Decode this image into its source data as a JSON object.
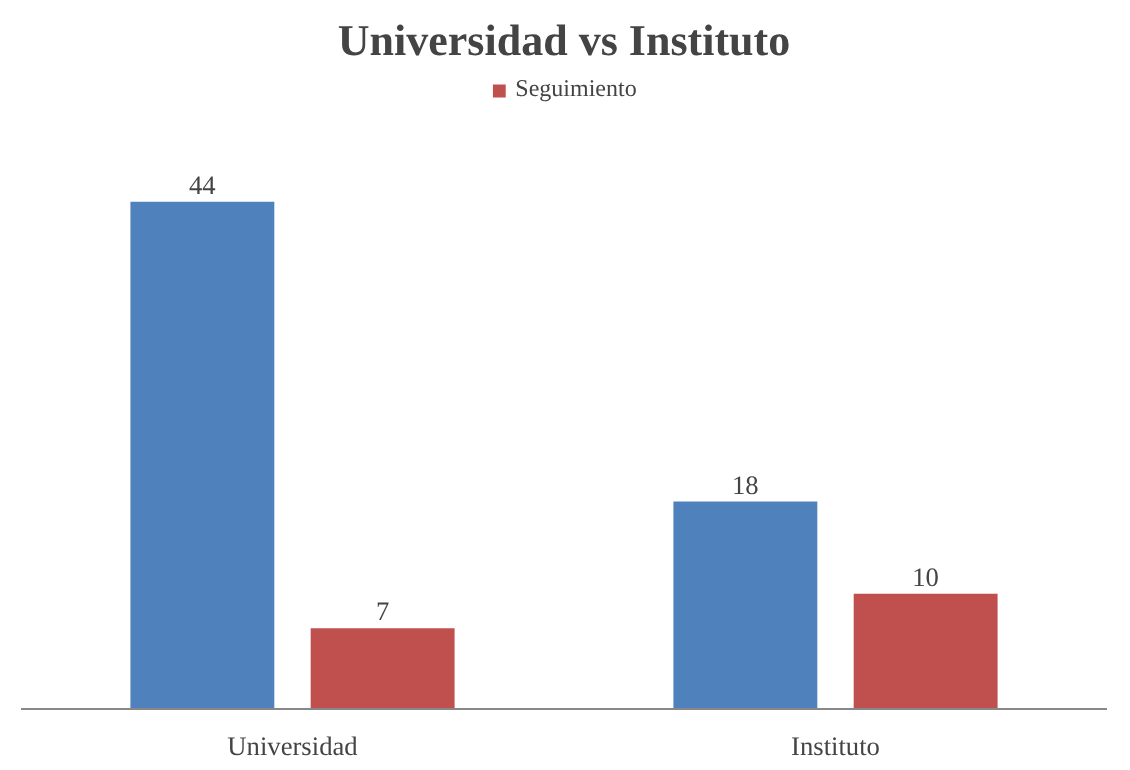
{
  "chart_data": {
    "type": "bar",
    "title": "Universidad vs Instituto",
    "categories": [
      "Universidad",
      "Instituto"
    ],
    "series": [
      {
        "color": "#4f81bd",
        "values": [
          44,
          18
        ]
      },
      {
        "name": "Seguimiento",
        "color": "#c0504d",
        "values": [
          7,
          10
        ]
      }
    ],
    "data_labels": true,
    "legend": "top",
    "grid": false
  }
}
